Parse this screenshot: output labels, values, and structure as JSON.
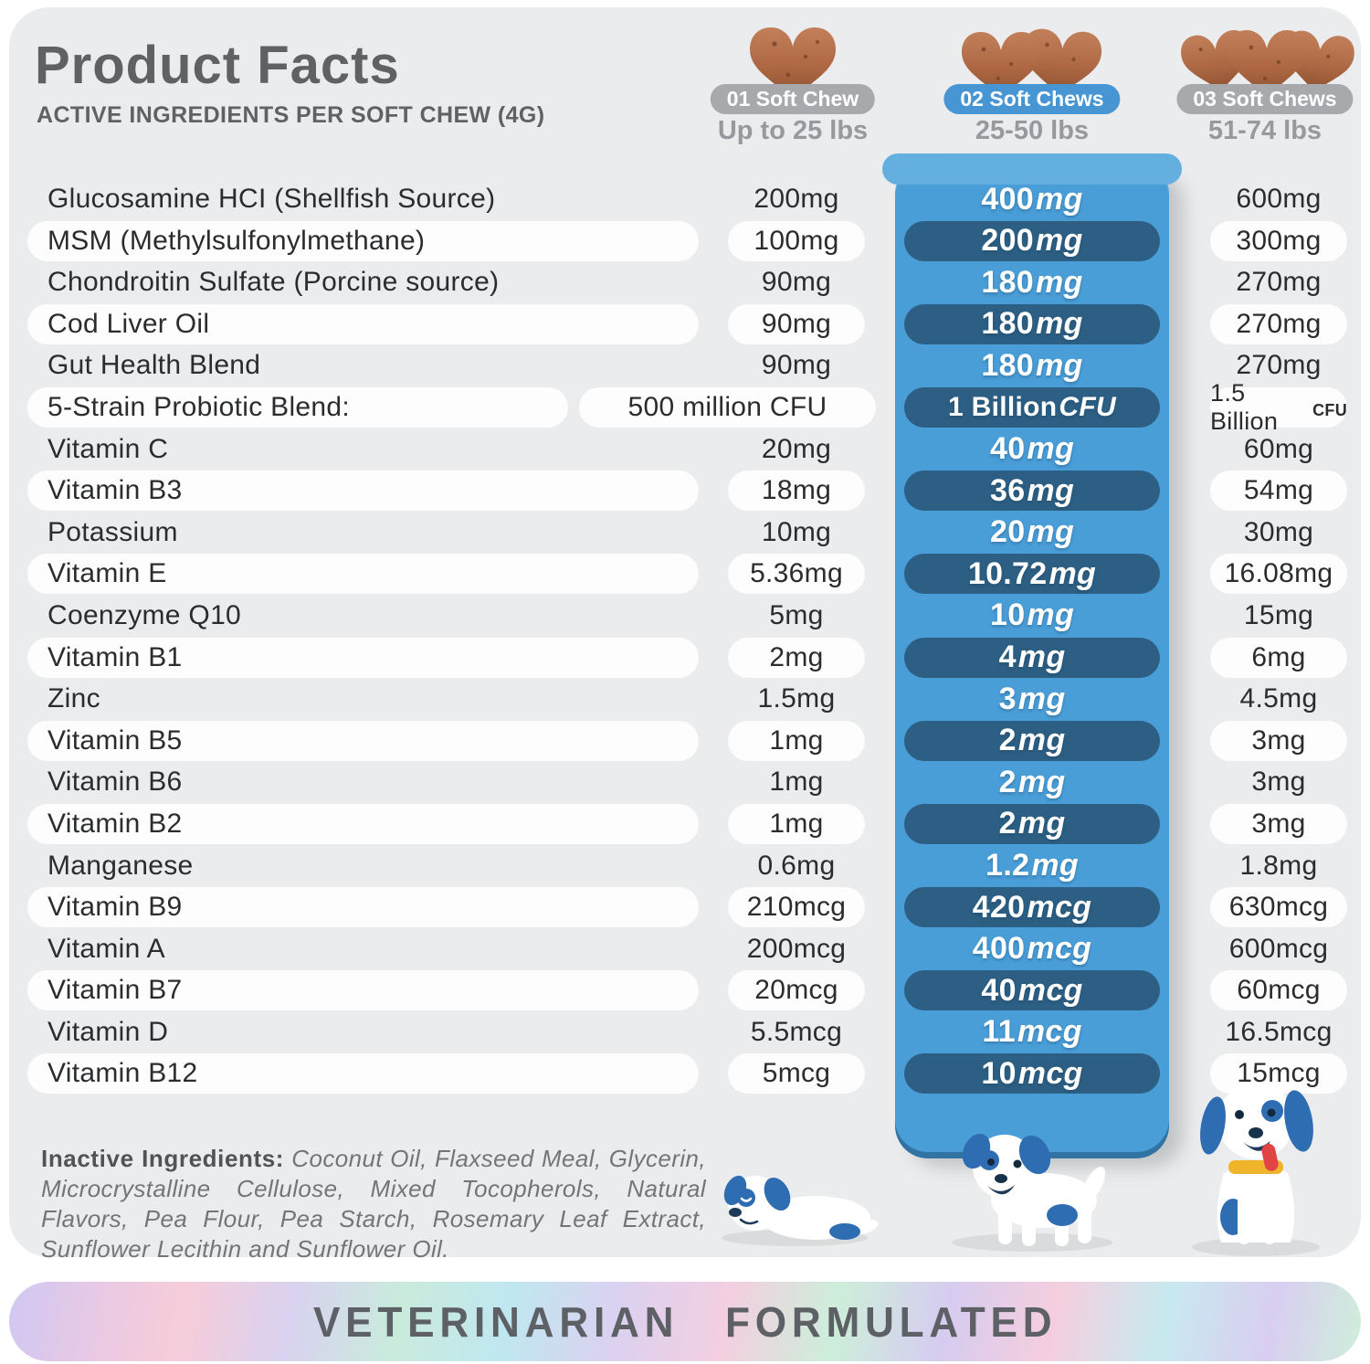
{
  "header": {
    "title": "Product Facts",
    "subtitle": "ACTIVE INGREDIENTS PER SOFT CHEW (4G)"
  },
  "columns": [
    {
      "badge": "01 Soft Chew",
      "weight": "Up to 25 lbs",
      "chews": 1,
      "highlighted": false
    },
    {
      "badge": "02 Soft Chews",
      "weight": "25-50 lbs",
      "chews": 2,
      "highlighted": true
    },
    {
      "badge": "03 Soft Chews",
      "weight": "51-74 lbs",
      "chews": 3,
      "highlighted": false
    }
  ],
  "rows": [
    {
      "name": "Glucosamine HCI (Shellfish Source)",
      "v1": "200mg",
      "v2": "400",
      "v2u": "mg",
      "v3": "600mg",
      "striped": false
    },
    {
      "name": "MSM (Methylsulfonylmethane)",
      "v1": "100mg",
      "v2": "200",
      "v2u": "mg",
      "v3": "300mg",
      "striped": true
    },
    {
      "name": "Chondroitin Sulfate (Porcine source)",
      "v1": "90mg",
      "v2": "180",
      "v2u": "mg",
      "v3": "270mg",
      "striped": false
    },
    {
      "name": "Cod Liver Oil",
      "v1": "90mg",
      "v2": "180",
      "v2u": "mg",
      "v3": "270mg",
      "striped": true
    },
    {
      "name": "Gut Health Blend",
      "v1": "90mg",
      "v2": "180",
      "v2u": "mg",
      "v3": "270mg",
      "striped": false
    },
    {
      "name": "5-Strain Probiotic Blend:",
      "v1": "500 million CFU",
      "v2": "1 Billion",
      "v2u": "CFU",
      "v3": "1.5 Billion",
      "v3small": "CFU",
      "striped": true,
      "cfu": true
    },
    {
      "name": "Vitamin C",
      "v1": "20mg",
      "v2": "40",
      "v2u": "mg",
      "v3": "60mg",
      "striped": false
    },
    {
      "name": "Vitamin B3",
      "v1": "18mg",
      "v2": "36",
      "v2u": "mg",
      "v3": "54mg",
      "striped": true
    },
    {
      "name": "Potassium",
      "v1": "10mg",
      "v2": "20",
      "v2u": "mg",
      "v3": "30mg",
      "striped": false
    },
    {
      "name": "Vitamin E",
      "v1": "5.36mg",
      "v2": "10.72",
      "v2u": "mg",
      "v3": "16.08mg",
      "striped": true
    },
    {
      "name": "Coenzyme Q10",
      "v1": "5mg",
      "v2": "10",
      "v2u": "mg",
      "v3": "15mg",
      "striped": false
    },
    {
      "name": "Vitamin B1",
      "v1": "2mg",
      "v2": "4",
      "v2u": "mg",
      "v3": "6mg",
      "striped": true
    },
    {
      "name": "Zinc",
      "v1": "1.5mg",
      "v2": "3",
      "v2u": "mg",
      "v3": "4.5mg",
      "striped": false
    },
    {
      "name": "Vitamin B5",
      "v1": "1mg",
      "v2": "2",
      "v2u": "mg",
      "v3": "3mg",
      "striped": true
    },
    {
      "name": "Vitamin B6",
      "v1": "1mg",
      "v2": "2",
      "v2u": "mg",
      "v3": "3mg",
      "striped": false
    },
    {
      "name": "Vitamin B2",
      "v1": "1mg",
      "v2": "2",
      "v2u": "mg",
      "v3": "3mg",
      "striped": true
    },
    {
      "name": "Manganese",
      "v1": "0.6mg",
      "v2": "1.2",
      "v2u": "mg",
      "v3": "1.8mg",
      "striped": false
    },
    {
      "name": "Vitamin B9",
      "v1": "210mcg",
      "v2": "420",
      "v2u": "mcg",
      "v3": "630mcg",
      "striped": true
    },
    {
      "name": "Vitamin A",
      "v1": "200mcg",
      "v2": "400",
      "v2u": "mcg",
      "v3": "600mcg",
      "striped": false
    },
    {
      "name": "Vitamin B7",
      "v1": "20mcg",
      "v2": "40",
      "v2u": "mcg",
      "v3": "60mcg",
      "striped": true
    },
    {
      "name": "Vitamin D",
      "v1": "5.5mcg",
      "v2": "11",
      "v2u": "mcg",
      "v3": "16.5mcg",
      "striped": false
    },
    {
      "name": "Vitamin B12",
      "v1": "5mcg",
      "v2": "10",
      "v2u": "mcg",
      "v3": "15mcg",
      "striped": true
    }
  ],
  "inactive": {
    "label": "Inactive Ingredients:",
    "text": " Coconut Oil, Flaxseed Meal, Glycerin, Microcrystalline Cellulose, Mixed Tocopherols, Natural Flavors, Pea Flour, Pea Starch, Rosemary Leaf Extract, Sunflower Lecithin and Sunflower Oil."
  },
  "footer": {
    "banner": "VETERINARIAN FORMULATED"
  },
  "colors": {
    "card_bg": "#ebeced",
    "panel_blue": "#4a9ed8",
    "dark_pill_blue": "#2d5f84",
    "badge_gray": "#a7a9ac",
    "badge_blue": "#4796d3",
    "chew_brown": "#b06b46",
    "dog_blue": "#2f6db2",
    "collar_yellow": "#f0b42a",
    "tongue_red": "#e04444"
  }
}
